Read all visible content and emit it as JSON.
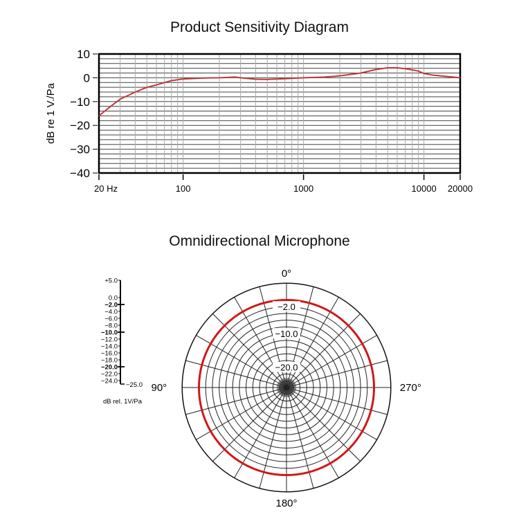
{
  "chart_data": [
    {
      "type": "line",
      "title": "Product Sensitivity Diagram",
      "xlabel": "",
      "ylabel": "dB re 1 V./Pa",
      "x_scale": "log",
      "xlim": [
        20,
        20000
      ],
      "ylim": [
        -40,
        10
      ],
      "x_ticks": [
        {
          "value": 20,
          "label": "20 Hz"
        },
        {
          "value": 100,
          "label": "100"
        },
        {
          "value": 1000,
          "label": "1000"
        },
        {
          "value": 10000,
          "label": "10000"
        },
        {
          "value": 20000,
          "label": "20000"
        }
      ],
      "y_ticks": [
        {
          "value": 10,
          "label": "10"
        },
        {
          "value": 0,
          "label": "0"
        },
        {
          "value": -10,
          "label": "−10"
        },
        {
          "value": -20,
          "label": "−20"
        },
        {
          "value": -30,
          "label": "−30"
        },
        {
          "value": -40,
          "label": "−40"
        }
      ],
      "grid": true,
      "line_color": "#c0393b",
      "x": [
        20,
        25,
        30,
        40,
        50,
        60,
        70,
        80,
        100,
        150,
        200,
        270,
        300,
        400,
        500,
        700,
        1000,
        1500,
        2000,
        3000,
        4000,
        5000,
        6000,
        7000,
        8000,
        9000,
        10000,
        12000,
        15000,
        20000
      ],
      "y": [
        -16,
        -12,
        -9,
        -6,
        -4,
        -3,
        -2,
        -1.2,
        -0.5,
        -0.1,
        0,
        0.3,
        0,
        -0.6,
        -0.7,
        -0.4,
        0,
        0.3,
        0.8,
        2,
        3.5,
        4.2,
        4.2,
        3.8,
        3.3,
        2.8,
        1.8,
        1.1,
        0.6,
        0
      ]
    },
    {
      "type": "polar",
      "title": "Omnidirectional Microphone",
      "angle_labels": [
        "0°",
        "90°",
        "180°",
        "270°"
      ],
      "radial_range_db": [
        -25,
        5
      ],
      "ring_labels": [
        "−2.0",
        "−10.0",
        "−20.0"
      ],
      "scale_labels": [
        {
          "value": 5,
          "label": "+5.0",
          "bold": false
        },
        {
          "value": 0,
          "label": "0.0",
          "bold": false
        },
        {
          "value": -2,
          "label": "−2.0",
          "bold": true
        },
        {
          "value": -4,
          "label": "−4.0",
          "bold": false
        },
        {
          "value": -6,
          "label": "−6.0",
          "bold": false
        },
        {
          "value": -8,
          "label": "−8.0",
          "bold": false
        },
        {
          "value": -10,
          "label": "−10.0",
          "bold": true
        },
        {
          "value": -12,
          "label": "−12.0",
          "bold": false
        },
        {
          "value": -14,
          "label": "−14.0",
          "bold": false
        },
        {
          "value": -16,
          "label": "−16.0",
          "bold": false
        },
        {
          "value": -18,
          "label": "−18.0",
          "bold": false
        },
        {
          "value": -20,
          "label": "−20.0",
          "bold": true
        },
        {
          "value": -22,
          "label": "−22.0",
          "bold": false
        },
        {
          "value": -24,
          "label": "−24.0",
          "bold": false
        }
      ],
      "scale_bottom_label": "−25.0",
      "scale_unit": "dB rel. 1V/Pa",
      "pattern_level_db": 0,
      "pattern_color": "#d01818"
    }
  ]
}
